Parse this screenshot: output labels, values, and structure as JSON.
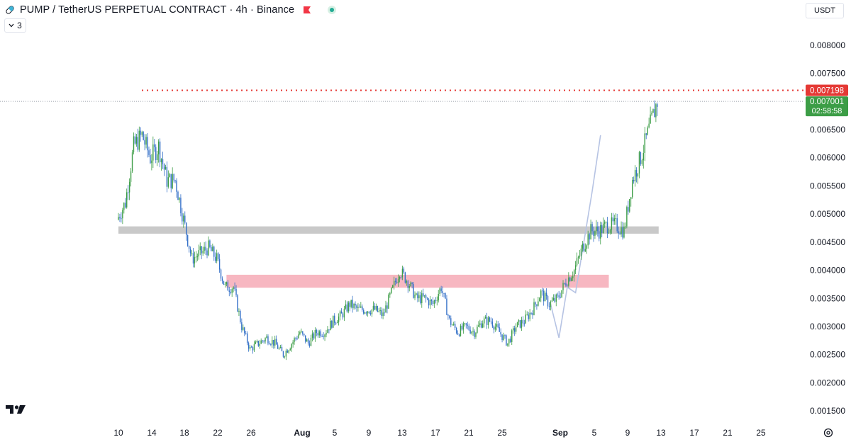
{
  "header": {
    "title": "PUMP / TetherUS PERPETUAL CONTRACT · 4h · Binance",
    "icons": [
      "pump-logo-icon",
      "flag-icon",
      "live-dot-icon"
    ],
    "indicator_count": "3",
    "currency": "USDT"
  },
  "colors": {
    "up": "#3c9d46",
    "down": "#3470c8",
    "grey_zone": "#c9c9c9",
    "pink_zone": "#f7b7c1",
    "projection": "#b6c3e3",
    "high_line": "#e53935",
    "current_label": "#3c9d46"
  },
  "chart_data": {
    "type": "line",
    "x_tick_labels": [
      "10",
      "14",
      "18",
      "22",
      "26",
      "Aug",
      "5",
      "9",
      "13",
      "17",
      "21",
      "25",
      "Sep",
      "5",
      "9",
      "13",
      "17",
      "21",
      "25"
    ],
    "y_tick_labels": [
      "0.008000",
      "0.007500",
      "0.007000",
      "0.006500",
      "0.006000",
      "0.005500",
      "0.005000",
      "0.004500",
      "0.004000",
      "0.003500",
      "0.003000",
      "0.002500",
      "0.002000",
      "0.001500"
    ],
    "ylim": [
      0.0013,
      0.0083
    ],
    "high": {
      "value": 0.007198,
      "label": "0.007198"
    },
    "current": {
      "value": 0.007001,
      "label": "0.007001",
      "countdown": "02:58:58"
    },
    "zones": [
      {
        "name": "resistance-zone-grey",
        "y_top": 0.00478,
        "y_bottom": 0.00465,
        "x_start": "Jul 10",
        "x_end": "Sep 13"
      },
      {
        "name": "support-zone-pink",
        "y_top": 0.00392,
        "y_bottom": 0.00369,
        "x_start": "Jul 23",
        "x_end": "Sep 7"
      }
    ],
    "price_series": {
      "name": "PUMP/USDT",
      "x": [
        "Jul 10",
        "Jul 11",
        "Jul 12",
        "Jul 13",
        "Jul 14",
        "Jul 15",
        "Jul 16",
        "Jul 17",
        "Jul 18",
        "Jul 19",
        "Jul 20",
        "Jul 21",
        "Jul 22",
        "Jul 23",
        "Jul 24",
        "Jul 25",
        "Jul 26",
        "Jul 27",
        "Jul 28",
        "Jul 29",
        "Jul 30",
        "Jul 31",
        "Aug 1",
        "Aug 2",
        "Aug 3",
        "Aug 4",
        "Aug 5",
        "Aug 6",
        "Aug 7",
        "Aug 8",
        "Aug 9",
        "Aug 10",
        "Aug 11",
        "Aug 12",
        "Aug 13",
        "Aug 14",
        "Aug 15",
        "Aug 16",
        "Aug 17",
        "Aug 18",
        "Aug 19",
        "Aug 20",
        "Aug 21",
        "Aug 22",
        "Aug 23",
        "Aug 24",
        "Aug 25",
        "Aug 26",
        "Aug 27",
        "Aug 28",
        "Aug 29",
        "Aug 30",
        "Aug 31",
        "Sep 1",
        "Sep 2",
        "Sep 3",
        "Sep 4",
        "Sep 5",
        "Sep 6",
        "Sep 7",
        "Sep 8",
        "Sep 9",
        "Sep 10",
        "Sep 11",
        "Sep 12",
        "Sep 13"
      ],
      "y": [
        0.0049,
        0.0052,
        0.0062,
        0.0064,
        0.006,
        0.0062,
        0.0056,
        0.0056,
        0.0049,
        0.0042,
        0.0043,
        0.0044,
        0.0042,
        0.0037,
        0.0037,
        0.003,
        0.0026,
        0.0027,
        0.0028,
        0.0027,
        0.0025,
        0.0027,
        0.0029,
        0.0027,
        0.0029,
        0.0029,
        0.0031,
        0.0032,
        0.0034,
        0.0033,
        0.0033,
        0.0033,
        0.0032,
        0.0036,
        0.004,
        0.0038,
        0.0035,
        0.0035,
        0.0034,
        0.0037,
        0.0031,
        0.0029,
        0.003,
        0.0029,
        0.0031,
        0.0031,
        0.0029,
        0.0027,
        0.003,
        0.0031,
        0.0033,
        0.0036,
        0.0034,
        0.0035,
        0.0038,
        0.004,
        0.0044,
        0.0047,
        0.0047,
        0.0048,
        0.0048,
        0.0047,
        0.0056,
        0.006,
        0.0065,
        0.007
      ]
    },
    "projection_series": {
      "x": [
        "Aug 31",
        "Sep 1",
        "Sep 2",
        "Sep 3",
        "Sep 4",
        "Sep 5",
        "Sep 6"
      ],
      "y": [
        0.0034,
        0.0028,
        0.0037,
        0.0036,
        0.0045,
        0.0054,
        0.0064
      ]
    }
  }
}
